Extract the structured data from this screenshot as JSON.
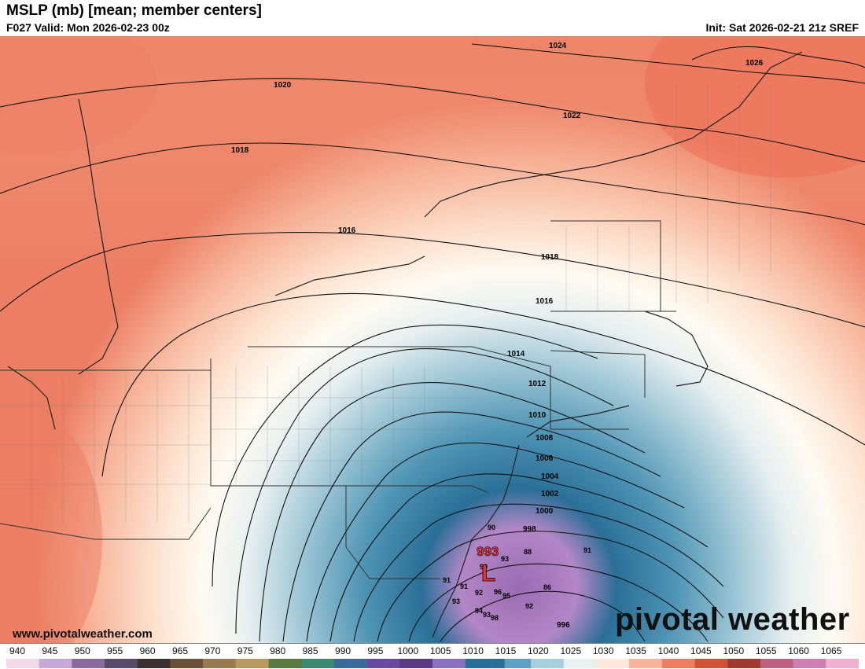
{
  "header": {
    "title": "MSLP (mb) [mean; member centers]",
    "valid": "F027 Valid: Mon 2026-02-23 00z",
    "init": "Init: Sat 2026-02-21 21z SREF"
  },
  "footer": {
    "website": "www.pivotalweather.com",
    "brand": "pivotal weather",
    "brand_icon": "gear-icon"
  },
  "isobars": {
    "labels": [
      "1024",
      "1026",
      "1020",
      "1022",
      "1018",
      "1016",
      "1018",
      "1016",
      "1014",
      "1012",
      "1010",
      "1008",
      "1006",
      "1004",
      "1002",
      "1000",
      "998",
      "996"
    ]
  },
  "low_center": {
    "symbol": "L",
    "pressure": "993",
    "color": "#ff2a2a"
  },
  "member_centers": [
    "90",
    "88",
    "91",
    "93",
    "91",
    "92",
    "96",
    "95",
    "86",
    "93",
    "94",
    "93",
    "98",
    "92",
    "91",
    "99"
  ],
  "colorbar": {
    "ticks": [
      "940",
      "945",
      "950",
      "955",
      "960",
      "965",
      "970",
      "975",
      "980",
      "985",
      "990",
      "995",
      "1000",
      "1005",
      "1010",
      "1015",
      "1020",
      "1025",
      "1030",
      "1035",
      "1040",
      "1045",
      "1050",
      "1055",
      "1060",
      "1065"
    ]
  },
  "colors": {
    "high_red": "#e8725a",
    "mid_cream": "#fdf3e6",
    "low_blue": "#2a7aa0",
    "low_purple": "#9b6ab5"
  }
}
